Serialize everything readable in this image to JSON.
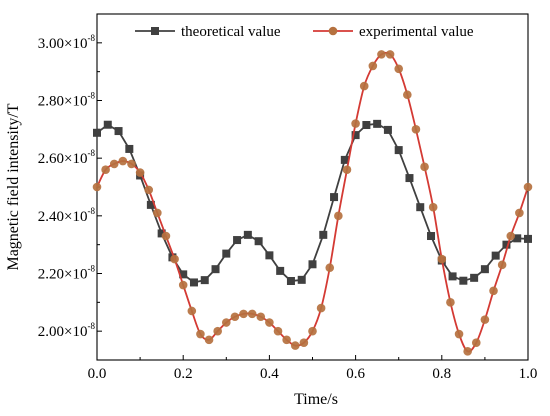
{
  "chart_data": {
    "type": "line",
    "xlabel": "Time/s",
    "ylabel": "Magnetic field intensity/T",
    "xlim": [
      0.0,
      1.0
    ],
    "ylim": [
      1.9e-08,
      3.1e-08
    ],
    "x_ticks": [
      {
        "value": 0.0,
        "label": "0.0"
      },
      {
        "value": 0.2,
        "label": "0.2"
      },
      {
        "value": 0.4,
        "label": "0.4"
      },
      {
        "value": 0.6,
        "label": "0.6"
      },
      {
        "value": 0.8,
        "label": "0.8"
      },
      {
        "value": 1.0,
        "label": "1.0"
      }
    ],
    "y_ticks": [
      {
        "value": 2e-08,
        "mantissa": "2.00",
        "times": "×",
        "base": "10",
        "exponent": "-8"
      },
      {
        "value": 2.2e-08,
        "mantissa": "2.20",
        "times": "×",
        "base": "10",
        "exponent": "-8"
      },
      {
        "value": 2.4e-08,
        "mantissa": "2.40",
        "times": "×",
        "base": "10",
        "exponent": "-8"
      },
      {
        "value": 2.6e-08,
        "mantissa": "2.60",
        "times": "×",
        "base": "10",
        "exponent": "-8"
      },
      {
        "value": 2.8e-08,
        "mantissa": "2.80",
        "times": "×",
        "base": "10",
        "exponent": "-8"
      },
      {
        "value": 3e-08,
        "mantissa": "3.00",
        "times": "×",
        "base": "10",
        "exponent": "-8"
      }
    ],
    "legend_position": "top",
    "series": [
      {
        "name": "theoretical value",
        "marker": "square",
        "color": "#404040",
        "x": [
          0.0,
          0.025,
          0.05,
          0.075,
          0.1,
          0.125,
          0.15,
          0.175,
          0.2,
          0.225,
          0.25,
          0.275,
          0.3,
          0.325,
          0.35,
          0.375,
          0.4,
          0.425,
          0.45,
          0.475,
          0.5,
          0.525,
          0.55,
          0.575,
          0.6,
          0.625,
          0.65,
          0.675,
          0.7,
          0.725,
          0.75,
          0.775,
          0.8,
          0.825,
          0.85,
          0.875,
          0.9,
          0.925,
          0.95,
          0.975,
          1.0
        ],
        "y": [
          2.688e-08,
          2.716e-08,
          2.694e-08,
          2.632e-08,
          2.54e-08,
          2.438e-08,
          2.339e-08,
          2.256e-08,
          2.197e-08,
          2.169e-08,
          2.177e-08,
          2.215e-08,
          2.269e-08,
          2.316e-08,
          2.334e-08,
          2.312e-08,
          2.263e-08,
          2.209e-08,
          2.174e-08,
          2.178e-08,
          2.232e-08,
          2.334e-08,
          2.465e-08,
          2.594e-08,
          2.68e-08,
          2.715e-08,
          2.719e-08,
          2.698e-08,
          2.628e-08,
          2.531e-08,
          2.43e-08,
          2.33e-08,
          2.245e-08,
          2.19e-08,
          2.175e-08,
          2.185e-08,
          2.215e-08,
          2.262e-08,
          2.3e-08,
          2.322e-08,
          2.32e-08
        ]
      },
      {
        "name": "experimental value",
        "marker": "circle",
        "color": "#b5713f",
        "line_color": "#d43a34",
        "x": [
          0.0,
          0.02,
          0.04,
          0.06,
          0.08,
          0.1,
          0.12,
          0.14,
          0.16,
          0.18,
          0.2,
          0.22,
          0.24,
          0.26,
          0.28,
          0.3,
          0.32,
          0.34,
          0.36,
          0.38,
          0.4,
          0.42,
          0.44,
          0.46,
          0.48,
          0.5,
          0.52,
          0.54,
          0.56,
          0.58,
          0.6,
          0.62,
          0.64,
          0.66,
          0.68,
          0.7,
          0.72,
          0.74,
          0.76,
          0.78,
          0.8,
          0.82,
          0.84,
          0.86,
          0.88,
          0.9,
          0.92,
          0.94,
          0.96,
          0.98,
          1.0
        ],
        "y": [
          2.5e-08,
          2.56e-08,
          2.58e-08,
          2.59e-08,
          2.58e-08,
          2.55e-08,
          2.49e-08,
          2.41e-08,
          2.33e-08,
          2.25e-08,
          2.16e-08,
          2.07e-08,
          1.99e-08,
          1.97e-08,
          2e-08,
          2.03e-08,
          2.05e-08,
          2.06e-08,
          2.06e-08,
          2.05e-08,
          2.03e-08,
          2e-08,
          1.97e-08,
          1.95e-08,
          1.96e-08,
          2e-08,
          2.08e-08,
          2.22e-08,
          2.4e-08,
          2.56e-08,
          2.72e-08,
          2.85e-08,
          2.92e-08,
          2.96e-08,
          2.96e-08,
          2.91e-08,
          2.82e-08,
          2.7e-08,
          2.57e-08,
          2.43e-08,
          2.25e-08,
          2.1e-08,
          1.99e-08,
          1.93e-08,
          1.96e-08,
          2.04e-08,
          2.14e-08,
          2.23e-08,
          2.33e-08,
          2.41e-08,
          2.5e-08
        ]
      }
    ]
  }
}
